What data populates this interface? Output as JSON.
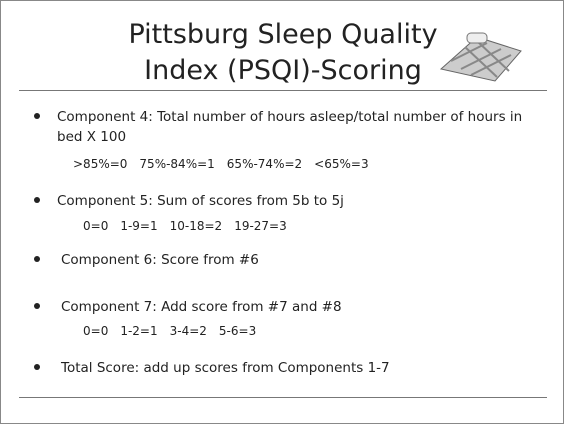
{
  "title": [
    "Pittsburg Sleep Quality",
    "Index (PSQI)-Scoring"
  ],
  "bullets": [
    {
      "text": "Component 4:  Total number of hours asleep/total number of hours in bed X 100",
      "scores": [
        ">85%=0",
        "75%-84%=1",
        "65%-74%=2",
        "<65%=3"
      ]
    },
    {
      "text": "Component 5: Sum of scores from 5b to 5j",
      "scores": [
        "0=0",
        "1-9=1",
        "10-18=2",
        "19-27=3"
      ]
    },
    {
      "text": "Component 6: Score from #6"
    },
    {
      "text": "Component 7: Add score from #7 and #8",
      "scores": [
        "0=0",
        "1-2=1",
        "3-4=2",
        "5-6=3"
      ]
    },
    {
      "text": "Total Score:  add up scores from Components 1-7"
    }
  ]
}
